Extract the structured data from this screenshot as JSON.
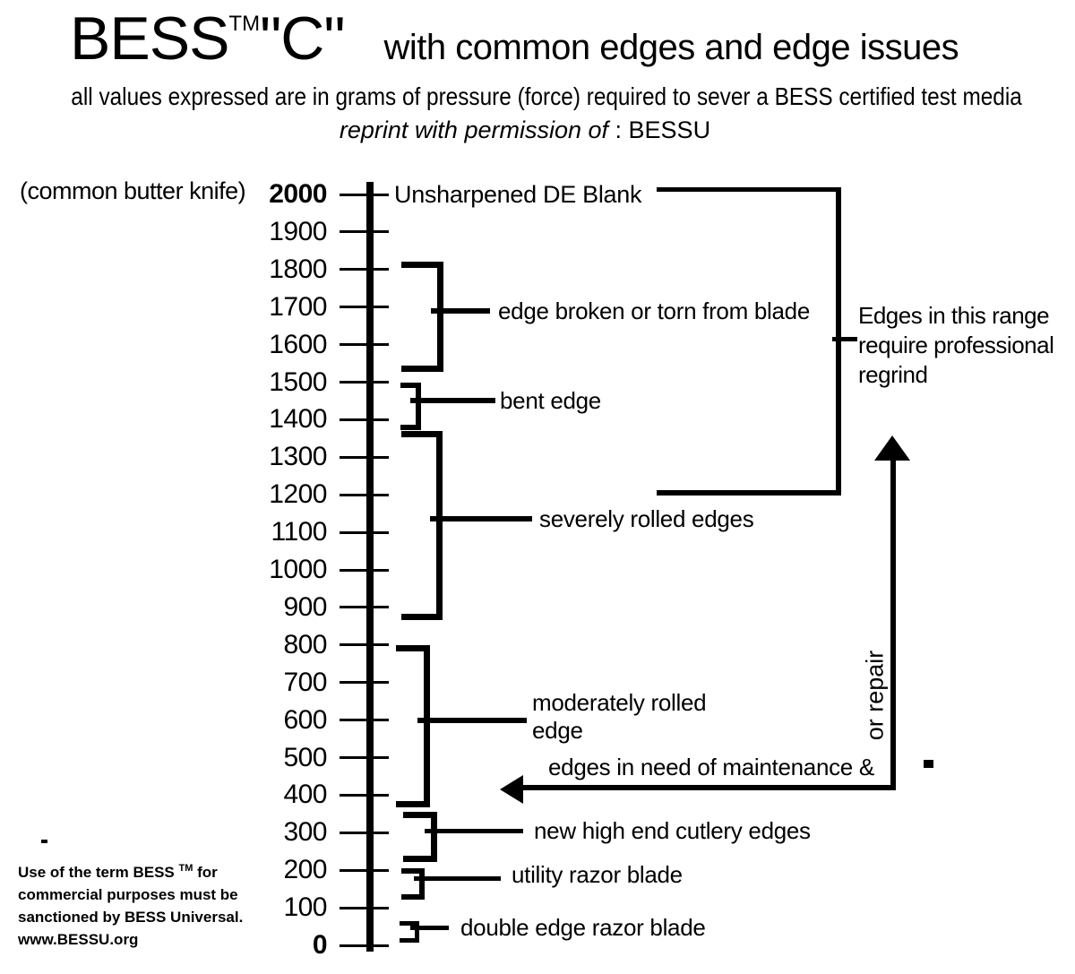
{
  "page": {
    "title": {
      "brand": "BESS",
      "tm": "TM",
      "quoted_c": "\"C\"",
      "subtitle": "with common edges and edge issues"
    },
    "tagline": "all values expressed are in grams of pressure (force) required to sever a BESS certified test media",
    "permission": {
      "italic": "reprint with permission of",
      "suffix": " : BESSU"
    },
    "left_label": "(common butter knife)",
    "footer": {
      "line1_pre": "Use of the term BESS ",
      "line1_sup": "TM",
      "line1_post": " for",
      "line2": "commercial purposes must be",
      "line3": "sanctioned by BESS Universal.",
      "line4": "www.BESSU.org"
    }
  },
  "colors": {
    "ink": "#000000",
    "paper": "#ffffff"
  },
  "chart_data": {
    "type": "scale-diagram",
    "title": "BESS \"C\" with common edges and edge issues",
    "unit": "grams of pressure (force) required to sever a BESS certified test media",
    "axis": {
      "orientation": "vertical",
      "min": 0,
      "max": 2000,
      "step": 100,
      "bold_ticks": [
        2000,
        0
      ]
    },
    "reference_top": "(common butter knife)",
    "annotations": [
      {
        "label": "Unsharpened DE Blank",
        "value": 2000
      },
      {
        "label": "edge broken or torn from blade",
        "range": [
          1560,
          1820
        ]
      },
      {
        "label": "bent edge",
        "range": [
          1400,
          1500
        ]
      },
      {
        "label": "severely rolled edges",
        "range": [
          900,
          1370
        ]
      },
      {
        "label": "moderately rolled edge",
        "label_lines": [
          "moderately rolled",
          "edge"
        ],
        "range": [
          400,
          800
        ]
      },
      {
        "label": "new high end cutlery edges",
        "range": [
          255,
          355
        ]
      },
      {
        "label": "utility razor blade",
        "range": [
          150,
          205
        ]
      },
      {
        "label": "double edge razor blade",
        "range": [
          30,
          65
        ]
      }
    ],
    "callouts": [
      {
        "label": "Edges in this range require professional regrind",
        "label_lines": [
          "Edges in this range",
          "require professional",
          "regrind"
        ],
        "range": [
          1250,
          2000
        ]
      },
      {
        "label": "edges in need of maintenance & or repair",
        "line1": "edges in need of maintenance &",
        "line2": "or repair",
        "range": [
          400,
          1250
        ]
      }
    ]
  }
}
